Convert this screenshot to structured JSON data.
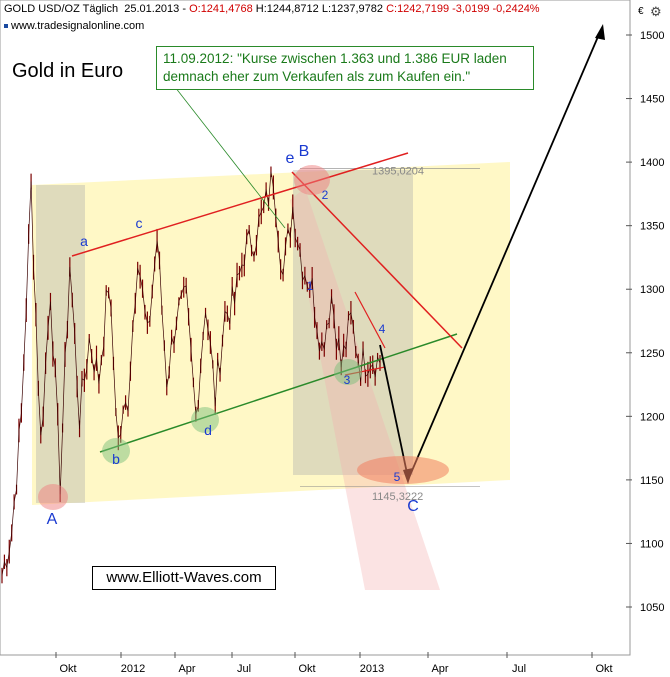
{
  "header": {
    "instrument": "GOLD USD/OZ Täglich",
    "date": "25.01.2013",
    "open": "O:1241,4768",
    "high": "H:1244,8712",
    "low": "L:1237,9782",
    "close": "C:1242,7199",
    "change": "-3,0199",
    "change_pct": "-0,2424%",
    "website": "www.tradesignalonline.com"
  },
  "chart_title": "Gold in Euro",
  "annotation": "11.09.2012: \"Kurse zwischen 1.363 und 1.386 EUR laden demnach eher zum Verkaufen als zum Kaufen ein.\"",
  "brand": "www.Elliott-Waves.com",
  "currency_label": "€",
  "colors": {
    "price": "#7a0000",
    "resistance": "#e02020",
    "support": "#2a8a2a",
    "wave_label": "#1a3ad0",
    "channel": "#fff7c0",
    "shade": "#b8b8b0"
  },
  "chart_data": {
    "type": "line",
    "y_axis": {
      "ticks": [
        1050,
        1100,
        1150,
        1200,
        1250,
        1300,
        1350,
        1400,
        1450,
        1500
      ],
      "range": [
        1010,
        1535
      ],
      "side": "right"
    },
    "x_axis": {
      "ticks": [
        "Okt",
        "2012",
        "Apr",
        "Jul",
        "Okt",
        "2013",
        "Apr",
        "Jul",
        "Okt"
      ]
    },
    "price_levels": [
      {
        "label": "1395,0204",
        "value": 1395
      },
      {
        "label": "1145,3222",
        "value": 1145
      }
    ],
    "wave_labels": [
      "A",
      "a",
      "b",
      "c",
      "d",
      "e",
      "B",
      "1",
      "2",
      "3",
      "4",
      "5",
      "C"
    ],
    "series": [
      {
        "values": [
          1075,
          1110,
          1200,
          1380,
          1180,
          1300,
          1150,
          1320,
          1200,
          1260,
          1230,
          1305,
          1180,
          1215,
          1330,
          1260,
          1340,
          1230,
          1280,
          1290,
          1200,
          1290,
          1215,
          1280,
          1290,
          1330,
          1340,
          1360,
          1390,
          1310,
          1365,
          1320,
          1300,
          1255,
          1295,
          1240,
          1275,
          1240,
          1248,
          1242
        ]
      }
    ]
  }
}
